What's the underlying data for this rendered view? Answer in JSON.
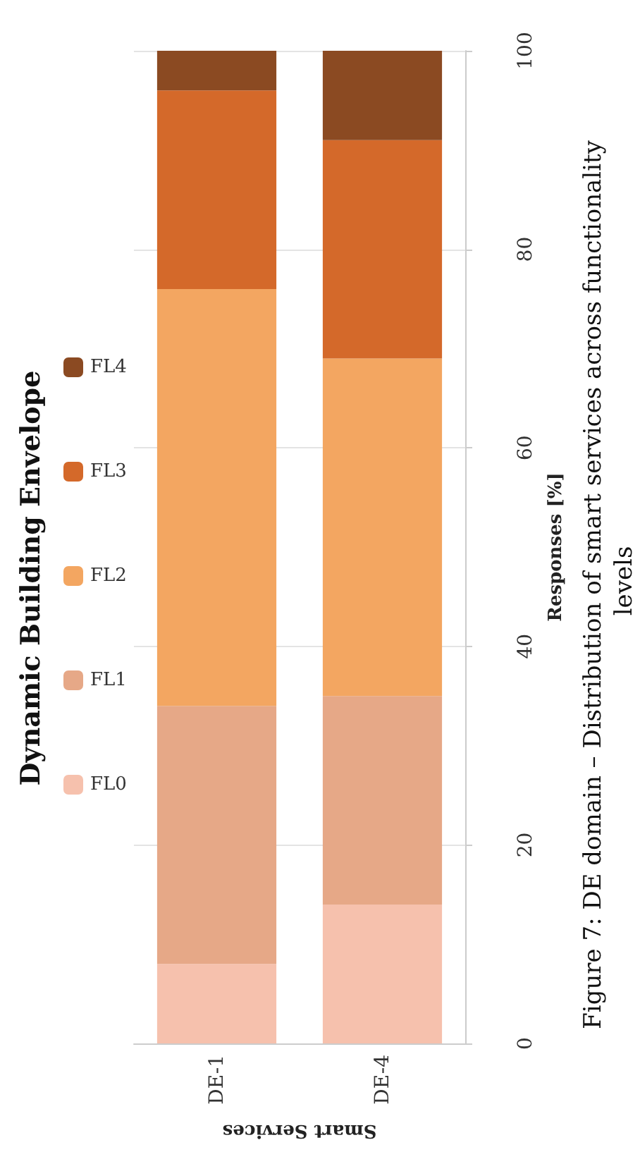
{
  "chart_data": {
    "type": "bar",
    "stacked": true,
    "title": "Dynamic Building Envelope",
    "xlabel": "Smart Services",
    "ylabel": "Responses [%]",
    "categories": [
      "DE-1",
      "DE-4"
    ],
    "series": [
      {
        "name": "FL0",
        "color": "#f6c1ad",
        "values": [
          8,
          14
        ]
      },
      {
        "name": "FL1",
        "color": "#e6a887",
        "values": [
          26,
          21
        ]
      },
      {
        "name": "FL2",
        "color": "#f3a661",
        "values": [
          42,
          34
        ]
      },
      {
        "name": "FL3",
        "color": "#d4692a",
        "values": [
          20,
          22
        ]
      },
      {
        "name": "FL4",
        "color": "#8b4a22",
        "values": [
          4,
          9
        ]
      }
    ],
    "ylim": [
      0,
      100
    ],
    "yticks": [
      0,
      20,
      40,
      60,
      80,
      100
    ],
    "grid": "y",
    "legend": "left",
    "annotations": [
      "Figure 7: DE domain – Distribution of smart services across functionality levels"
    ]
  }
}
